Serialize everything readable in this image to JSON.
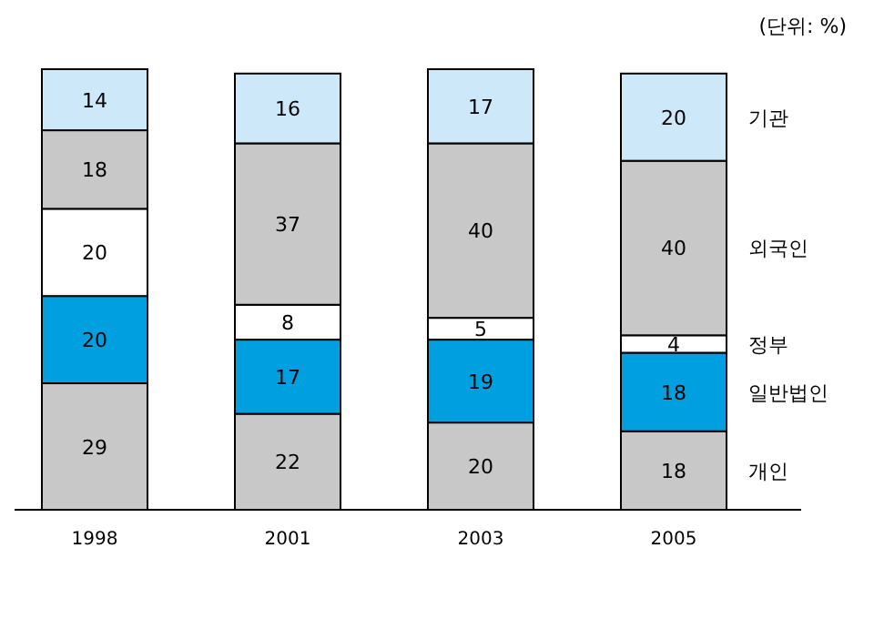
{
  "chart_data": {
    "type": "bar",
    "stacked": true,
    "subtitle": "(단위: %)",
    "categories": [
      "1998",
      "2001",
      "2003",
      "2005"
    ],
    "data_labels": true,
    "series": [
      {
        "name": "개인",
        "color": "#c8c8c8",
        "values": [
          29,
          22,
          20,
          18
        ]
      },
      {
        "name": "일반법인",
        "color": "#00a0e0",
        "values": [
          20,
          17,
          19,
          18
        ]
      },
      {
        "name": "정부",
        "color": "#ffffff",
        "values": [
          20,
          8,
          5,
          4
        ]
      },
      {
        "name": "외국인",
        "color": "#c8c8c8",
        "values": [
          18,
          37,
          40,
          40
        ]
      },
      {
        "name": "기관",
        "color": "#cde8f8",
        "values": [
          14,
          16,
          17,
          20
        ]
      }
    ]
  }
}
